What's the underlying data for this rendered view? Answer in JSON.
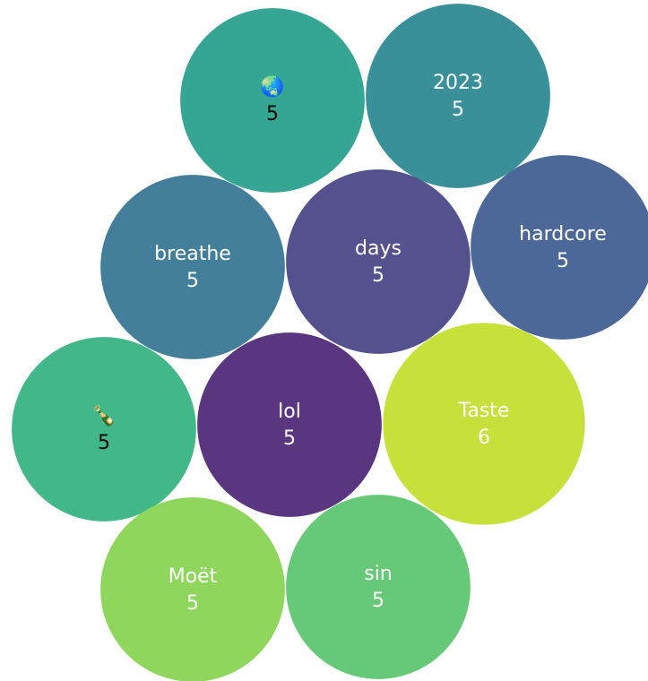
{
  "chart_data": {
    "type": "bubble",
    "categories": [
      "🌏",
      "2023",
      "breathe",
      "days",
      "hardcore",
      "🍾",
      "lol",
      "Taste",
      "Moët",
      "sin"
    ],
    "values": [
      5,
      5,
      5,
      5,
      5,
      5,
      5,
      6,
      5,
      5
    ],
    "colors": [
      "#35a694",
      "#3a9098",
      "#437e9a",
      "#55518f",
      "#4b6898",
      "#42b88a",
      "#5a3580",
      "#c7e03a",
      "#8fd75c",
      "#66c977"
    ],
    "label_colors": [
      "#000000",
      "#ffffff",
      "#ffffff",
      "#ffffff",
      "#ffffff",
      "#000000",
      "#ffffff",
      "#ffffff",
      "#ffffff",
      "#ffffff"
    ]
  }
}
